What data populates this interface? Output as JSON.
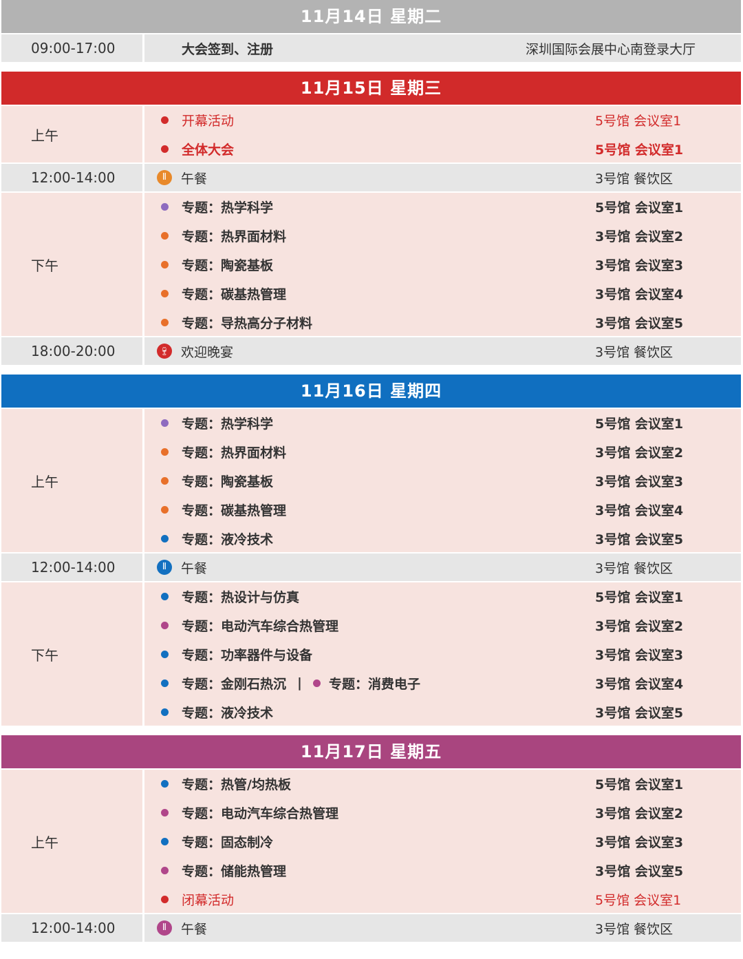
{
  "colors": {
    "gray_header": "#b3b3b3",
    "red": "#d12a2a",
    "blue": "#106fc0",
    "purple": "#a9457f",
    "row_pink": "#f7e3df",
    "row_gray": "#e6e6e6"
  },
  "dot_colors": {
    "purple": "#8e6bbf",
    "orange": "#e8702a",
    "blue": "#1270c0",
    "magenta": "#b0468a",
    "red": "#d22b2b"
  },
  "days": [
    {
      "title": "11月14日 星期二",
      "color": "#b3b3b3",
      "blocks": [
        {
          "time": "09:00-17:00",
          "type": "plain",
          "items": [
            {
              "text": "大会签到、注册",
              "location": "深圳国际会展中心南登录大厅"
            }
          ]
        }
      ]
    },
    {
      "title": "11月15日 星期三",
      "color": "#d12a2a",
      "blocks": [
        {
          "time": "上午",
          "type": "session",
          "items": [
            {
              "text": "开幕活动",
              "dot": "red",
              "location": "5号馆 会议室1",
              "style": "normal-red"
            },
            {
              "text": "全体大会",
              "dot": "red",
              "location": "5号馆 会议室1",
              "style": "bold-red"
            }
          ]
        },
        {
          "time": "12:00-14:00",
          "type": "meal",
          "items": [
            {
              "text": "午餐",
              "icon": "fork-knife-icon",
              "icon_color": "#e8892a",
              "location": "3号馆 餐饮区"
            }
          ]
        },
        {
          "time": "下午",
          "type": "session",
          "items": [
            {
              "text": "专题：热学科学",
              "dot": "purple",
              "location": "5号馆 会议室1"
            },
            {
              "text": "专题：热界面材料",
              "dot": "orange",
              "location": "3号馆 会议室2"
            },
            {
              "text": "专题：陶瓷基板",
              "dot": "orange",
              "location": "3号馆 会议室3"
            },
            {
              "text": "专题：碳基热管理",
              "dot": "orange",
              "location": "3号馆 会议室4"
            },
            {
              "text": "专题：导热高分子材料",
              "dot": "orange",
              "location": "3号馆 会议室5"
            }
          ]
        },
        {
          "time": "18:00-20:00",
          "type": "meal",
          "items": [
            {
              "text": "欢迎晚宴",
              "icon": "wine-glass-icon",
              "icon_color": "#d22b2b",
              "location": "3号馆 餐饮区"
            }
          ]
        }
      ]
    },
    {
      "title": "11月16日 星期四",
      "color": "#106fc0",
      "blocks": [
        {
          "time": "上午",
          "type": "session",
          "items": [
            {
              "text": "专题：热学科学",
              "dot": "purple",
              "location": "5号馆 会议室1"
            },
            {
              "text": "专题：热界面材料",
              "dot": "orange",
              "location": "3号馆 会议室2"
            },
            {
              "text": "专题：陶瓷基板",
              "dot": "orange",
              "location": "3号馆 会议室3"
            },
            {
              "text": "专题：碳基热管理",
              "dot": "orange",
              "location": "3号馆 会议室4"
            },
            {
              "text": "专题：液冷技术",
              "dot": "blue",
              "location": "3号馆 会议室5"
            }
          ]
        },
        {
          "time": "12:00-14:00",
          "type": "meal",
          "items": [
            {
              "text": "午餐",
              "icon": "fork-knife-icon",
              "icon_color": "#1270c0",
              "location": "3号馆 餐饮区"
            }
          ]
        },
        {
          "time": "下午",
          "type": "session",
          "items": [
            {
              "text": "专题：热设计与仿真",
              "dot": "blue",
              "location": "5号馆 会议室1"
            },
            {
              "text": "专题：电动汽车综合热管理",
              "dot": "magenta",
              "location": "3号馆 会议室2"
            },
            {
              "text": "专题：功率器件与设备",
              "dot": "blue",
              "location": "3号馆 会议室3"
            },
            {
              "text": "专题：金刚石热沉",
              "dot": "blue",
              "separator": "|",
              "extra": {
                "text": "专题：消费电子",
                "dot": "magenta"
              },
              "location": "3号馆 会议室4"
            },
            {
              "text": "专题：液冷技术",
              "dot": "blue",
              "location": "3号馆 会议室5"
            }
          ]
        }
      ]
    },
    {
      "title": "11月17日 星期五",
      "color": "#a9457f",
      "blocks": [
        {
          "time": "上午",
          "type": "session",
          "items": [
            {
              "text": "专题：热管/均热板",
              "dot": "blue",
              "location": "5号馆 会议室1"
            },
            {
              "text": "专题：电动汽车综合热管理",
              "dot": "magenta",
              "location": "3号馆 会议室2"
            },
            {
              "text": "专题：固态制冷",
              "dot": "blue",
              "location": "3号馆 会议室3"
            },
            {
              "text": "专题：储能热管理",
              "dot": "magenta",
              "location": "3号馆 会议室5"
            },
            {
              "text": "闭幕活动",
              "dot": "red",
              "location": "5号馆 会议室1",
              "style": "normal-red"
            }
          ]
        },
        {
          "time": "12:00-14:00",
          "type": "meal",
          "items": [
            {
              "text": "午餐",
              "icon": "fork-knife-icon",
              "icon_color": "#b0468a",
              "location": "3号馆 餐饮区"
            }
          ]
        }
      ]
    }
  ]
}
